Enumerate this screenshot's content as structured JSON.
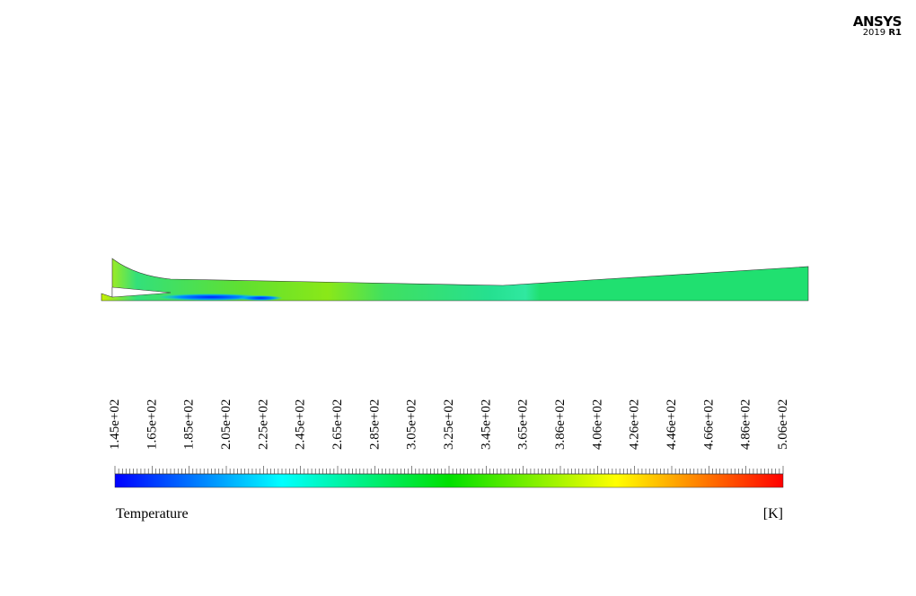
{
  "logo": {
    "brand": "ANSYS",
    "year": "2019",
    "release": "R1"
  },
  "colorbar": {
    "ticks": [
      "1.45e+02",
      "1.65e+02",
      "1.85e+02",
      "2.05e+02",
      "2.25e+02",
      "2.45e+02",
      "2.65e+02",
      "2.85e+02",
      "3.05e+02",
      "3.25e+02",
      "3.45e+02",
      "3.65e+02",
      "3.86e+02",
      "4.06e+02",
      "4.26e+02",
      "4.46e+02",
      "4.66e+02",
      "4.86e+02",
      "5.06e+02"
    ],
    "title": "Temperature",
    "unit": "[K]"
  }
}
